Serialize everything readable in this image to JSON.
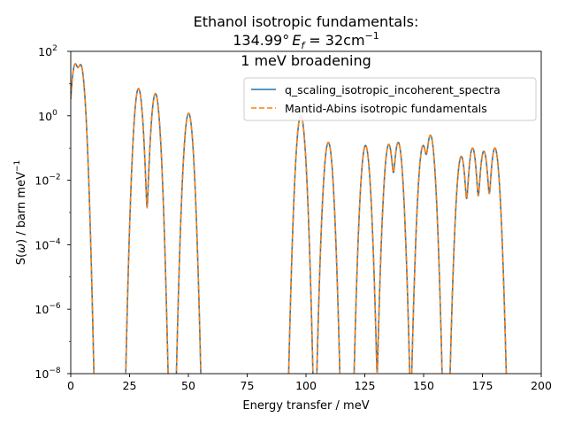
{
  "chart_data": {
    "type": "line",
    "title_lines": [
      "Ethanol isotropic fundamentals:",
      "134.99°",
      "E",
      "f",
      " = 32cm",
      "−1",
      "1 meV broadening"
    ],
    "xlabel": "Energy transfer / meV",
    "ylabel_parts": [
      "S(",
      "ω",
      ") / barn meV",
      "−1"
    ],
    "xlim": [
      0,
      200
    ],
    "ylim_log10": [
      -8,
      2
    ],
    "yscale": "log",
    "x_ticks": [
      0,
      25,
      50,
      75,
      100,
      125,
      150,
      175,
      200
    ],
    "y_ticks_exp": [
      -8,
      -6,
      -4,
      -2,
      0,
      2
    ],
    "y_tick_base": "10",
    "x_tick_labels": [
      "0",
      "25",
      "50",
      "75",
      "100",
      "125",
      "150",
      "175",
      "200"
    ],
    "y_tick_labels": [
      "−8",
      "−6",
      "−4",
      "−2",
      "0",
      "2"
    ],
    "legend_position": "top-right",
    "series": [
      {
        "name": "q_scaling_isotropic_incoherent_spectra",
        "color": "#1f77b4",
        "style": "solid"
      },
      {
        "name": "Mantid-Abins isotropic fundamentals",
        "color": "#ff7f0e",
        "style": "dashed"
      }
    ],
    "peaks_meV": [
      {
        "x": 1.9,
        "y": 40
      },
      {
        "x": 4.2,
        "y": 38
      },
      {
        "x": 28.8,
        "y": 7
      },
      {
        "x": 36.0,
        "y": 4.9
      },
      {
        "x": 50.1,
        "y": 1.2
      },
      {
        "x": 97.8,
        "y": 1.0
      },
      {
        "x": 109.5,
        "y": 0.15
      },
      {
        "x": 125.3,
        "y": 0.12
      },
      {
        "x": 135.2,
        "y": 0.13
      },
      {
        "x": 139.2,
        "y": 0.15
      },
      {
        "x": 149.8,
        "y": 0.12
      },
      {
        "x": 152.9,
        "y": 0.25
      },
      {
        "x": 166.0,
        "y": 0.055
      },
      {
        "x": 170.8,
        "y": 0.1
      },
      {
        "x": 175.6,
        "y": 0.08
      },
      {
        "x": 180.3,
        "y": 0.1
      }
    ],
    "peak_width_meV": 0.85,
    "colors": {
      "line1": "#1f77b4",
      "line2": "#ff7f0e",
      "axis": "#000000",
      "legend_border": "#cccccc"
    }
  }
}
